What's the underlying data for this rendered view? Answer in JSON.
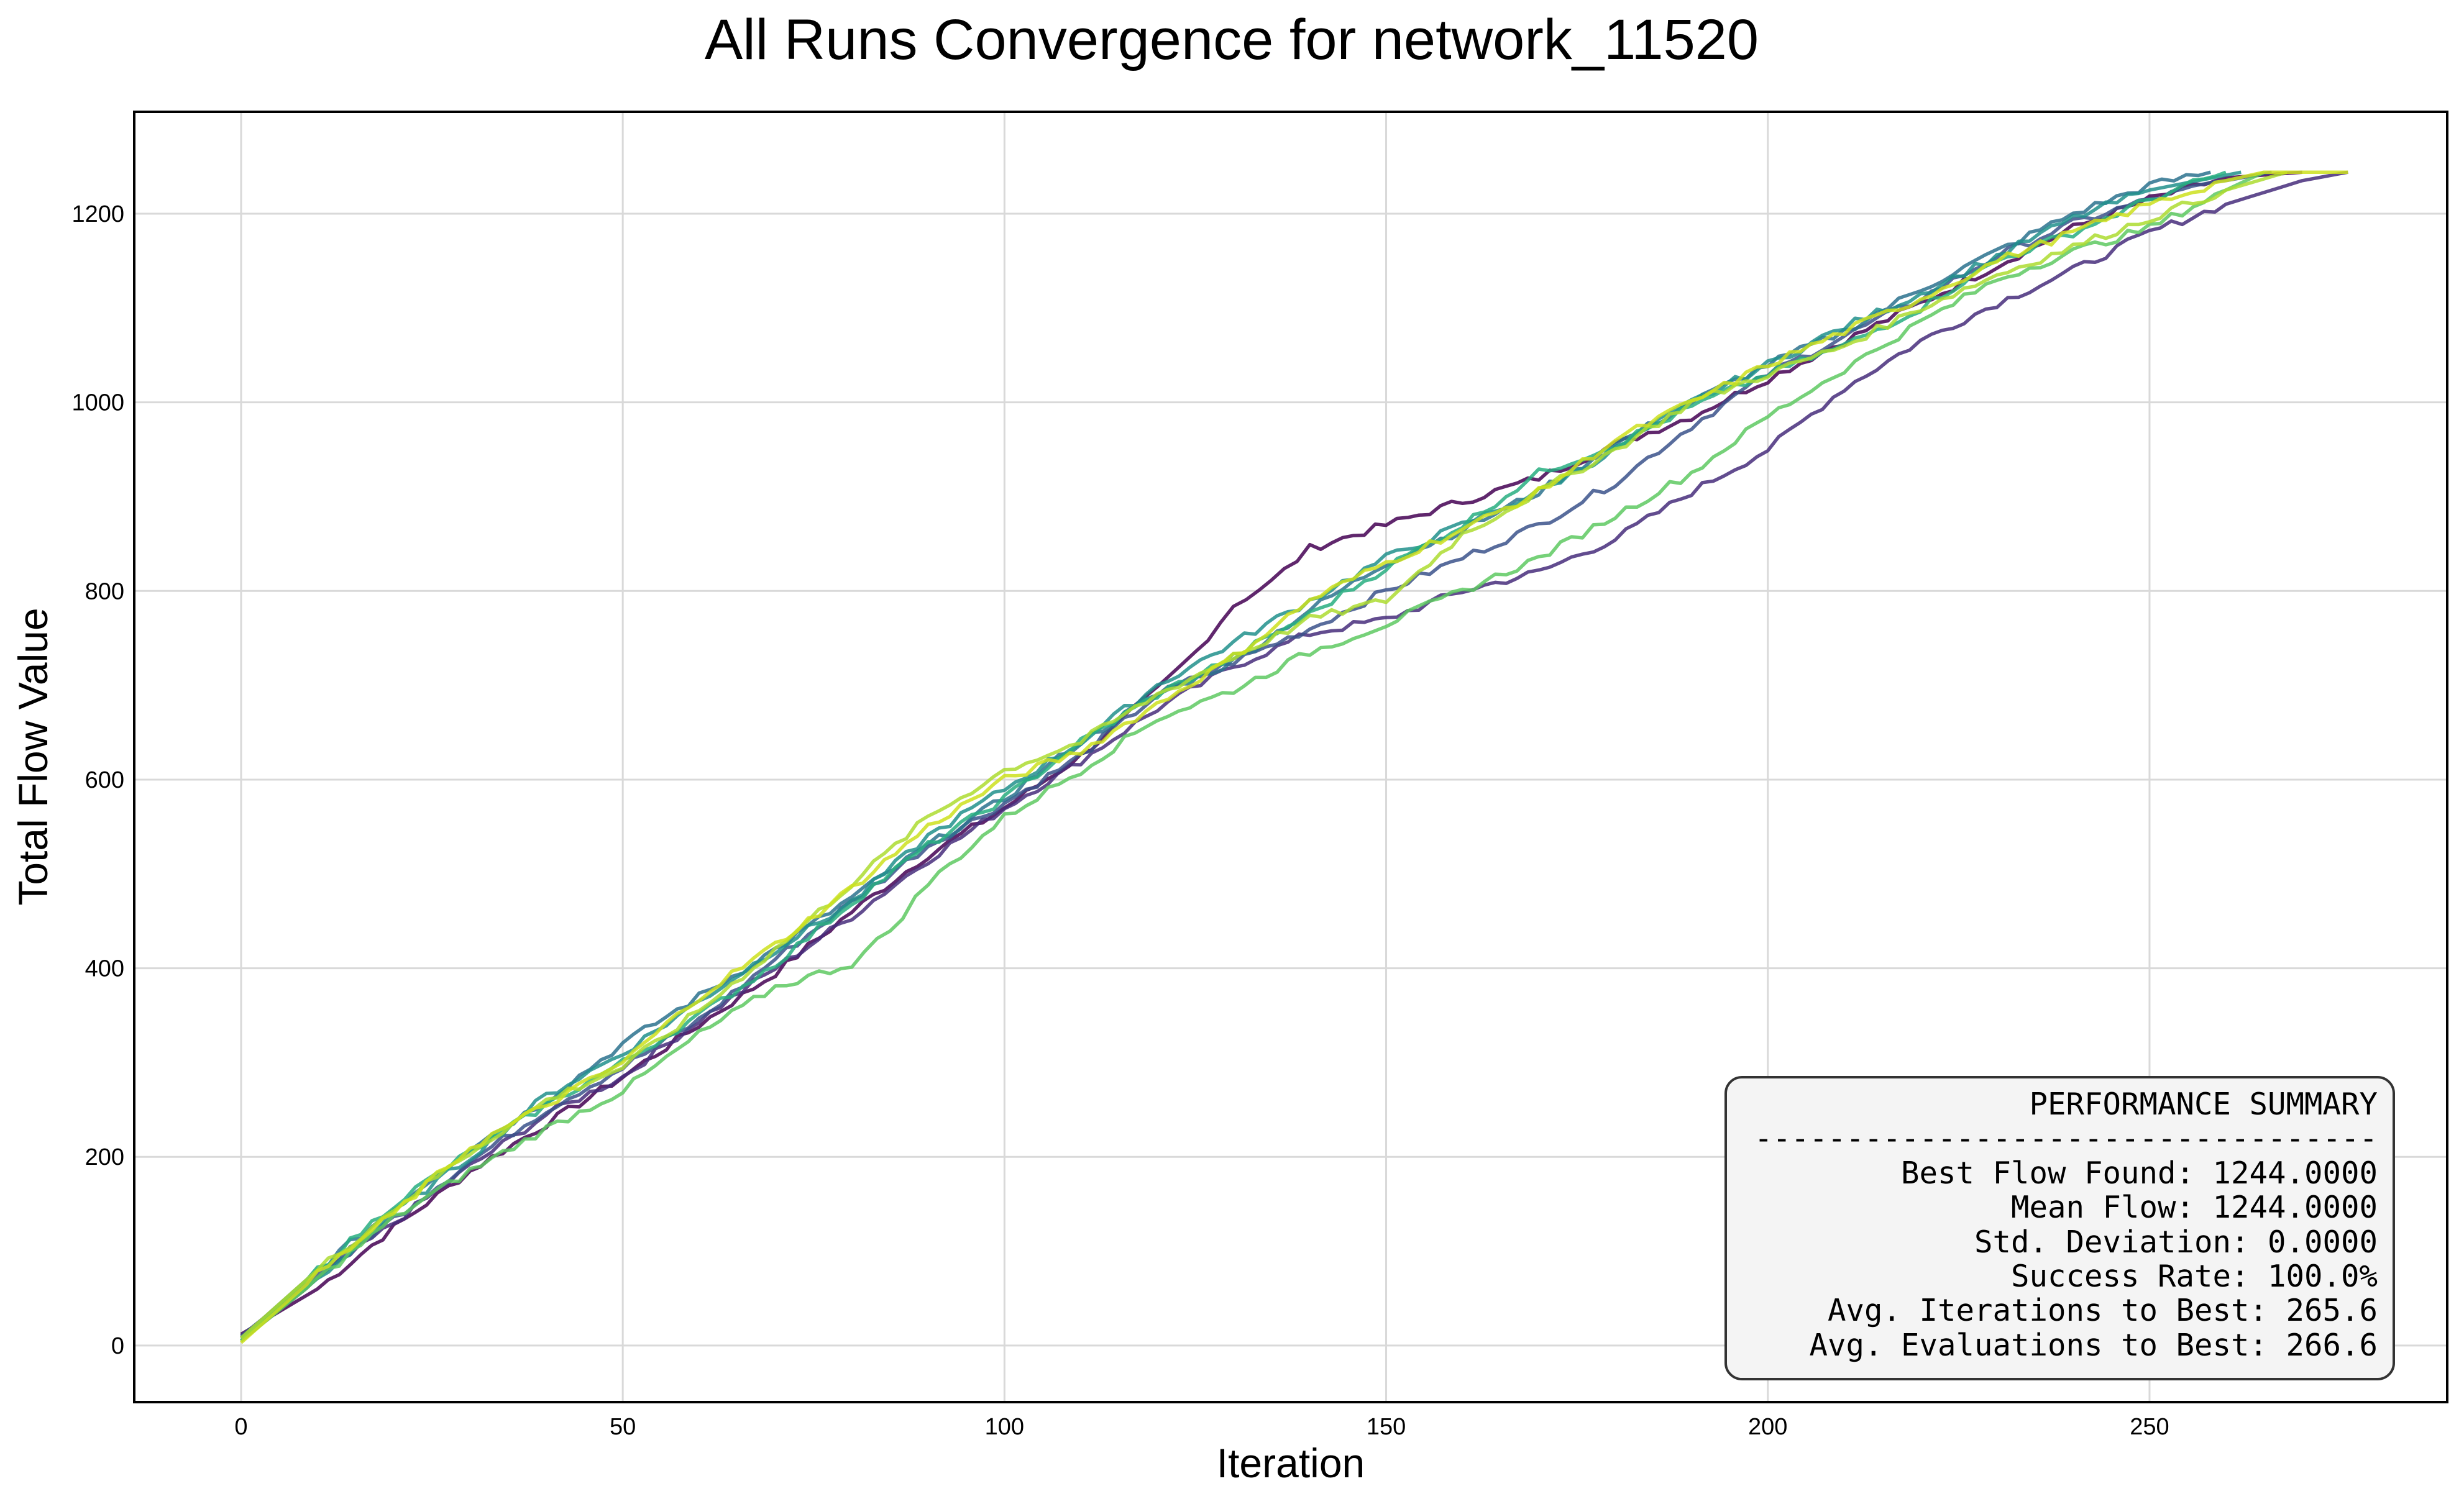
{
  "chart_data": {
    "type": "line",
    "title": "All Runs Convergence for network_11520",
    "xlabel": "Iteration",
    "ylabel": "Total Flow Value",
    "xlim": [
      -14,
      289
    ],
    "ylim": [
      -60,
      1308
    ],
    "xticks": [
      0,
      50,
      100,
      150,
      200,
      250
    ],
    "yticks": [
      0,
      200,
      400,
      600,
      800,
      1000,
      1200
    ],
    "grid": true,
    "series": [
      {
        "color": "#440154",
        "values": [
          [
            0,
            12
          ],
          [
            10,
            60
          ],
          [
            20,
            125
          ],
          [
            30,
            185
          ],
          [
            40,
            235
          ],
          [
            50,
            285
          ],
          [
            60,
            340
          ],
          [
            70,
            395
          ],
          [
            80,
            460
          ],
          [
            90,
            520
          ],
          [
            100,
            570
          ],
          [
            110,
            625
          ],
          [
            120,
            695
          ],
          [
            125,
            735
          ],
          [
            130,
            785
          ],
          [
            135,
            810
          ],
          [
            140,
            845
          ],
          [
            150,
            870
          ],
          [
            160,
            895
          ],
          [
            170,
            920
          ],
          [
            180,
            955
          ],
          [
            190,
            985
          ],
          [
            200,
            1025
          ],
          [
            210,
            1065
          ],
          [
            220,
            1105
          ],
          [
            230,
            1145
          ],
          [
            240,
            1185
          ],
          [
            250,
            1215
          ],
          [
            260,
            1238
          ],
          [
            270,
            1244
          ]
        ]
      },
      {
        "color": "#472d7b",
        "values": [
          [
            0,
            5
          ],
          [
            10,
            70
          ],
          [
            20,
            130
          ],
          [
            30,
            190
          ],
          [
            40,
            245
          ],
          [
            50,
            285
          ],
          [
            60,
            345
          ],
          [
            70,
            400
          ],
          [
            80,
            455
          ],
          [
            90,
            515
          ],
          [
            100,
            570
          ],
          [
            110,
            620
          ],
          [
            120,
            675
          ],
          [
            130,
            720
          ],
          [
            140,
            755
          ],
          [
            150,
            770
          ],
          [
            160,
            800
          ],
          [
            170,
            820
          ],
          [
            180,
            855
          ],
          [
            190,
            905
          ],
          [
            200,
            950
          ],
          [
            210,
            1015
          ],
          [
            220,
            1065
          ],
          [
            230,
            1105
          ],
          [
            240,
            1140
          ],
          [
            250,
            1180
          ],
          [
            260,
            1210
          ],
          [
            270,
            1235
          ],
          [
            276,
            1244
          ]
        ]
      },
      {
        "color": "#3b528b",
        "values": [
          [
            0,
            10
          ],
          [
            10,
            75
          ],
          [
            20,
            135
          ],
          [
            30,
            195
          ],
          [
            40,
            250
          ],
          [
            50,
            295
          ],
          [
            60,
            345
          ],
          [
            70,
            410
          ],
          [
            80,
            470
          ],
          [
            90,
            530
          ],
          [
            100,
            575
          ],
          [
            110,
            625
          ],
          [
            120,
            690
          ],
          [
            130,
            725
          ],
          [
            140,
            760
          ],
          [
            150,
            800
          ],
          [
            160,
            835
          ],
          [
            170,
            870
          ],
          [
            180,
            915
          ],
          [
            190,
            975
          ],
          [
            200,
            1030
          ],
          [
            210,
            1070
          ],
          [
            220,
            1110
          ],
          [
            230,
            1155
          ],
          [
            240,
            1190
          ],
          [
            250,
            1215
          ],
          [
            260,
            1235
          ],
          [
            266,
            1244
          ]
        ]
      },
      {
        "color": "#2c728e",
        "values": [
          [
            0,
            8
          ],
          [
            10,
            80
          ],
          [
            20,
            145
          ],
          [
            30,
            210
          ],
          [
            40,
            260
          ],
          [
            50,
            320
          ],
          [
            60,
            370
          ],
          [
            70,
            420
          ],
          [
            80,
            475
          ],
          [
            90,
            530
          ],
          [
            100,
            580
          ],
          [
            110,
            640
          ],
          [
            120,
            690
          ],
          [
            130,
            725
          ],
          [
            140,
            780
          ],
          [
            150,
            830
          ],
          [
            160,
            865
          ],
          [
            170,
            905
          ],
          [
            180,
            955
          ],
          [
            190,
            1000
          ],
          [
            200,
            1040
          ],
          [
            210,
            1075
          ],
          [
            220,
            1120
          ],
          [
            230,
            1160
          ],
          [
            240,
            1200
          ],
          [
            250,
            1230
          ],
          [
            258,
            1244
          ]
        ]
      },
      {
        "color": "#21918c",
        "values": [
          [
            0,
            8
          ],
          [
            10,
            70
          ],
          [
            20,
            140
          ],
          [
            30,
            200
          ],
          [
            40,
            265
          ],
          [
            50,
            310
          ],
          [
            60,
            365
          ],
          [
            70,
            420
          ],
          [
            80,
            470
          ],
          [
            90,
            540
          ],
          [
            100,
            590
          ],
          [
            110,
            640
          ],
          [
            120,
            700
          ],
          [
            130,
            745
          ],
          [
            140,
            790
          ],
          [
            150,
            835
          ],
          [
            160,
            870
          ],
          [
            170,
            905
          ],
          [
            180,
            950
          ],
          [
            190,
            1000
          ],
          [
            200,
            1040
          ],
          [
            210,
            1080
          ],
          [
            220,
            1115
          ],
          [
            230,
            1155
          ],
          [
            240,
            1195
          ],
          [
            250,
            1225
          ],
          [
            262,
            1244
          ]
        ]
      },
      {
        "color": "#28ae80",
        "values": [
          [
            0,
            5
          ],
          [
            10,
            80
          ],
          [
            20,
            150
          ],
          [
            30,
            205
          ],
          [
            40,
            255
          ],
          [
            50,
            300
          ],
          [
            60,
            350
          ],
          [
            70,
            405
          ],
          [
            80,
            470
          ],
          [
            90,
            530
          ],
          [
            100,
            580
          ],
          [
            110,
            640
          ],
          [
            120,
            690
          ],
          [
            130,
            730
          ],
          [
            140,
            775
          ],
          [
            150,
            825
          ],
          [
            160,
            870
          ],
          [
            170,
            925
          ],
          [
            180,
            955
          ],
          [
            190,
            995
          ],
          [
            200,
            1030
          ],
          [
            210,
            1060
          ],
          [
            220,
            1100
          ],
          [
            230,
            1150
          ],
          [
            240,
            1180
          ],
          [
            250,
            1215
          ],
          [
            260,
            1244
          ]
        ]
      },
      {
        "color": "#5ec962",
        "values": [
          [
            0,
            5
          ],
          [
            10,
            70
          ],
          [
            20,
            135
          ],
          [
            30,
            185
          ],
          [
            40,
            230
          ],
          [
            50,
            270
          ],
          [
            60,
            330
          ],
          [
            70,
            380
          ],
          [
            80,
            405
          ],
          [
            85,
            440
          ],
          [
            90,
            490
          ],
          [
            100,
            560
          ],
          [
            110,
            610
          ],
          [
            120,
            665
          ],
          [
            130,
            695
          ],
          [
            140,
            735
          ],
          [
            150,
            765
          ],
          [
            160,
            800
          ],
          [
            170,
            835
          ],
          [
            180,
            880
          ],
          [
            190,
            925
          ],
          [
            200,
            985
          ],
          [
            210,
            1035
          ],
          [
            220,
            1085
          ],
          [
            230,
            1130
          ],
          [
            240,
            1160
          ],
          [
            250,
            1185
          ],
          [
            260,
            1225
          ],
          [
            265,
            1244
          ]
        ]
      },
      {
        "color": "#addc30",
        "values": [
          [
            0,
            8
          ],
          [
            10,
            80
          ],
          [
            20,
            145
          ],
          [
            30,
            205
          ],
          [
            40,
            260
          ],
          [
            50,
            295
          ],
          [
            60,
            355
          ],
          [
            70,
            420
          ],
          [
            80,
            490
          ],
          [
            90,
            560
          ],
          [
            100,
            610
          ],
          [
            110,
            640
          ],
          [
            120,
            690
          ],
          [
            130,
            730
          ],
          [
            140,
            770
          ],
          [
            150,
            790
          ],
          [
            160,
            860
          ],
          [
            170,
            905
          ],
          [
            180,
            950
          ],
          [
            190,
            1000
          ],
          [
            200,
            1030
          ],
          [
            210,
            1060
          ],
          [
            220,
            1100
          ],
          [
            230,
            1135
          ],
          [
            240,
            1165
          ],
          [
            250,
            1195
          ],
          [
            260,
            1225
          ],
          [
            268,
            1244
          ]
        ]
      },
      {
        "color": "#cde11d",
        "values": [
          [
            0,
            3
          ],
          [
            10,
            75
          ],
          [
            20,
            140
          ],
          [
            30,
            210
          ],
          [
            40,
            255
          ],
          [
            50,
            300
          ],
          [
            60,
            370
          ],
          [
            70,
            425
          ],
          [
            80,
            485
          ],
          [
            90,
            550
          ],
          [
            100,
            600
          ],
          [
            110,
            630
          ],
          [
            120,
            680
          ],
          [
            130,
            730
          ],
          [
            140,
            790
          ],
          [
            150,
            830
          ],
          [
            160,
            865
          ],
          [
            170,
            905
          ],
          [
            180,
            960
          ],
          [
            190,
            1000
          ],
          [
            200,
            1040
          ],
          [
            210,
            1075
          ],
          [
            220,
            1110
          ],
          [
            230,
            1150
          ],
          [
            240,
            1180
          ],
          [
            250,
            1210
          ],
          [
            260,
            1235
          ],
          [
            265,
            1244
          ],
          [
            276,
            1244
          ]
        ]
      }
    ]
  },
  "summary": {
    "heading": "PERFORMANCE SUMMARY",
    "separator": "----------------------------------",
    "lines": [
      "Best Flow Found: 1244.0000",
      "Mean Flow: 1244.0000",
      "Std. Deviation: 0.0000",
      "Success Rate: 100.0%",
      "Avg. Iterations to Best: 265.6",
      "Avg. Evaluations to Best: 266.6"
    ]
  },
  "colors": {
    "grid": "#d9d9d9",
    "axes": "#000000",
    "summary_bg": "#f4f4f4",
    "summary_border": "#333333"
  }
}
